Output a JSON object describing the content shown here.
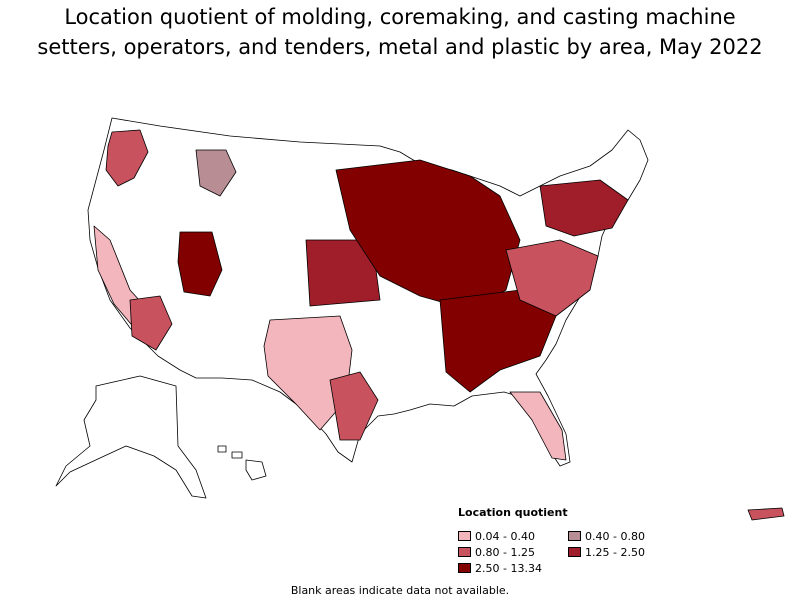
{
  "title": {
    "line1": "Location quotient of molding, coremaking, and casting machine",
    "line2": "setters, operators, and tenders, metal and plastic by area, May 2022"
  },
  "legend": {
    "title": "Location quotient",
    "items": [
      {
        "label": "0.04 - 0.40",
        "color": "#f4b6bd"
      },
      {
        "label": "0.40 - 0.80",
        "color": "#b88e94"
      },
      {
        "label": "0.80 - 1.25",
        "color": "#c8525e"
      },
      {
        "label": "1.25 - 2.50",
        "color": "#a01e2a"
      },
      {
        "label": "2.50 - 13.34",
        "color": "#820000"
      }
    ]
  },
  "footnote": "Blank areas indicate data not available."
}
